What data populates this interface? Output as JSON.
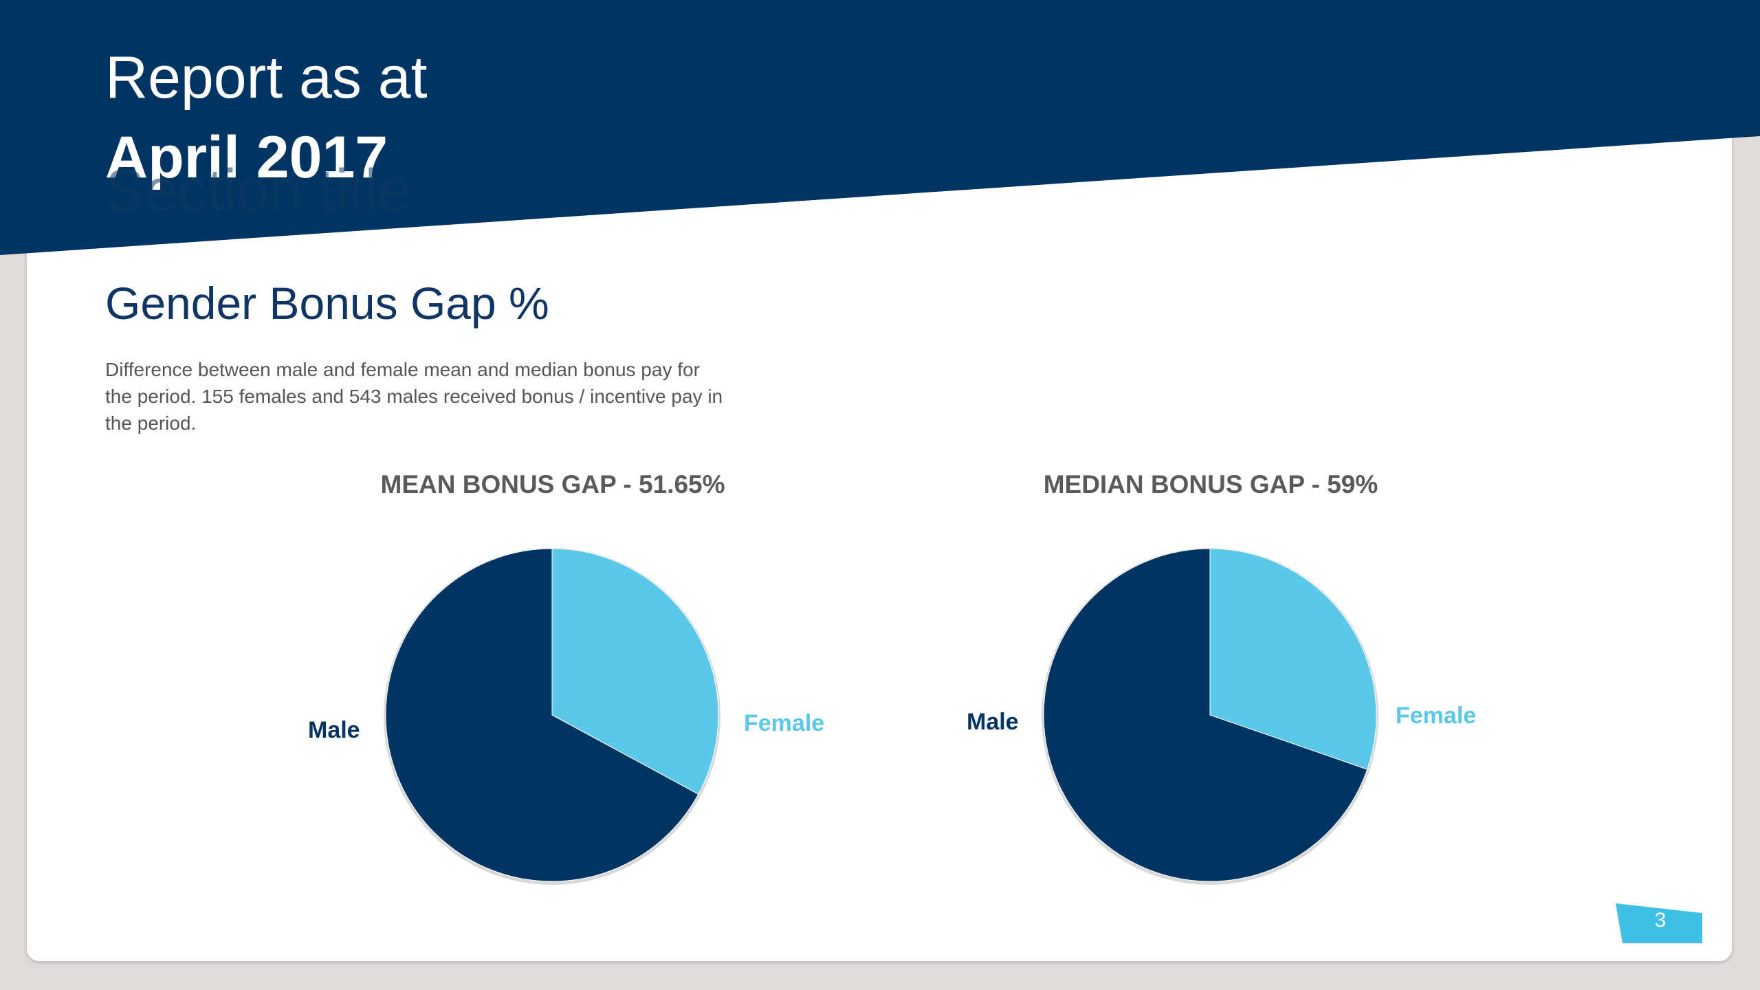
{
  "header": {
    "report_line1": "Report as at",
    "report_line2": "April 2017",
    "ghost_title": "Section title"
  },
  "section": {
    "heading": "Gender Bonus Gap %",
    "description": "Difference between male and female mean and median bonus pay for the period. 155 females and 543 males received bonus / incentive pay in the period."
  },
  "colors": {
    "banner": "#003462",
    "male": "#003462",
    "female": "#5bc8ea",
    "page_badge": "#3fc0e6",
    "background": "#dedcd9"
  },
  "chart_data": [
    {
      "type": "pie",
      "title": "MEAN BONUS GAP - 51.65%",
      "labels": [
        "Female",
        "Male"
      ],
      "values": [
        32.9,
        67.1
      ],
      "colors": [
        "#5bc8ea",
        "#003462"
      ],
      "start_angle_deg": 0,
      "direction": "clockwise from top"
    },
    {
      "type": "pie",
      "title": "MEDIAN BONUS GAP - 59%",
      "labels": [
        "Female",
        "Male"
      ],
      "values": [
        30.3,
        69.7
      ],
      "colors": [
        "#5bc8ea",
        "#003462"
      ],
      "start_angle_deg": 0,
      "direction": "clockwise from top"
    }
  ],
  "footer": {
    "page_number": "3"
  }
}
